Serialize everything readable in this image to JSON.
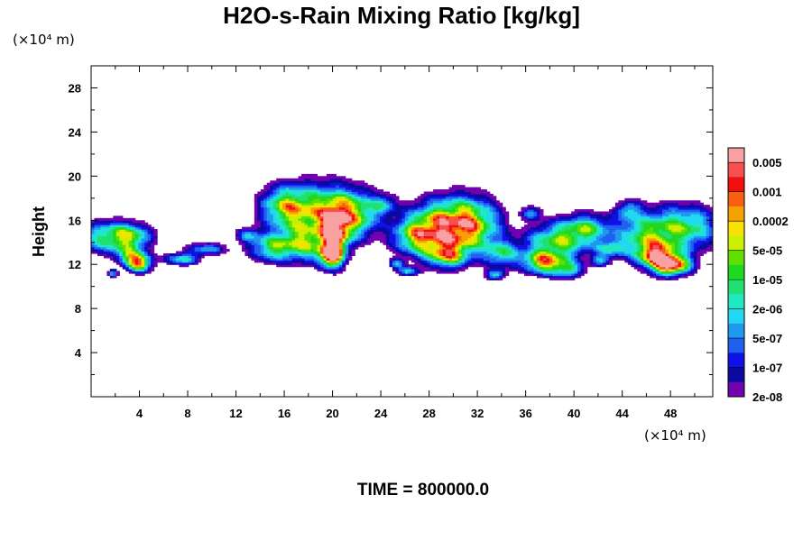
{
  "chart_data": {
    "type": "heatmap",
    "title": "H2O-s-Rain Mixing Ratio [kg/kg]",
    "xlabel": "",
    "ylabel": "Height",
    "x_unit": "(×10⁴ m)",
    "y_unit": "(×10⁴ m)",
    "xlim": [
      0,
      51.5
    ],
    "ylim": [
      0,
      30
    ],
    "x_ticks": [
      4,
      8,
      12,
      16,
      20,
      24,
      28,
      32,
      36,
      40,
      44,
      48
    ],
    "y_ticks": [
      4,
      8,
      12,
      16,
      20,
      24,
      28
    ],
    "annotation": "TIME = 800000.0",
    "colorbar": {
      "labels": [
        "0.005",
        "0.001",
        "0.0002",
        "5e-05",
        "1e-05",
        "2e-06",
        "5e-07",
        "1e-07",
        "2e-08"
      ],
      "colors": [
        "#f9a0a0",
        "#f85050",
        "#f01010",
        "#f86010",
        "#f8a000",
        "#f8e000",
        "#c8f000",
        "#60e000",
        "#20d820",
        "#20e070",
        "#20e8c0",
        "#20d8f0",
        "#2098f0",
        "#2060f0",
        "#1010e8",
        "#0a0aa0",
        "#7000b0"
      ]
    },
    "field_description": "cloud layer between heights ~11 and ~20, peaks near x=4,h=12; x=20,h=13; x=48,h=12",
    "grid": false
  }
}
